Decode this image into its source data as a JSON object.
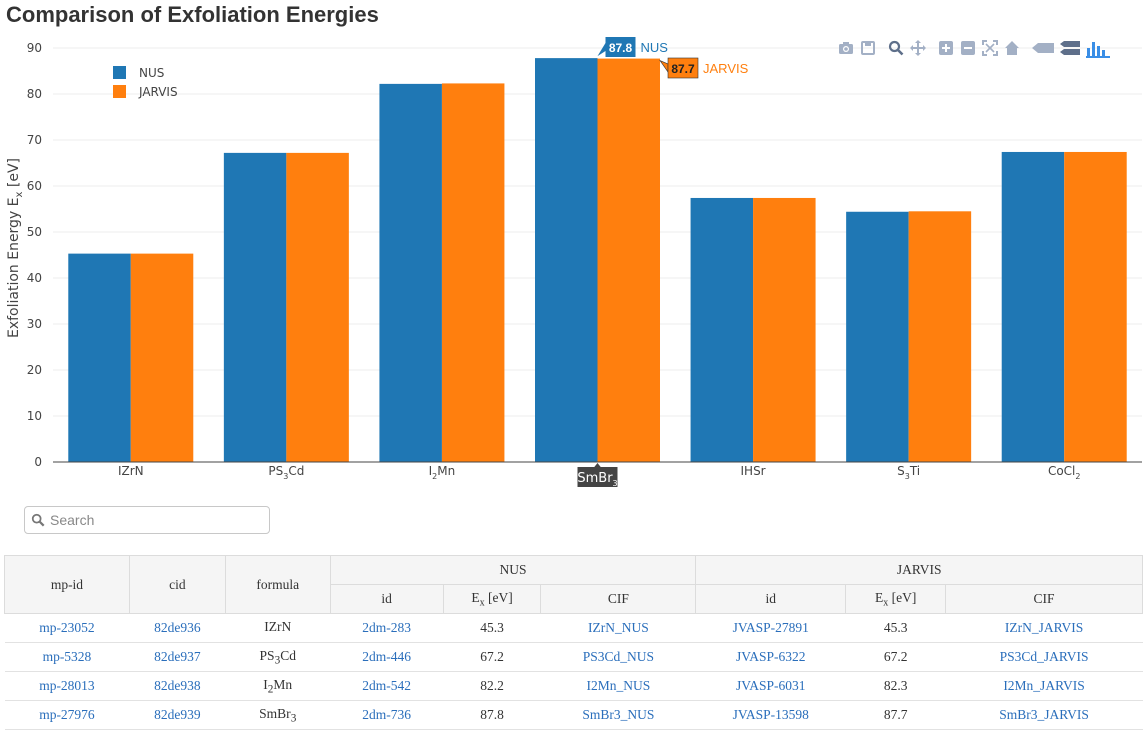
{
  "page": {
    "title": "Comparison of Exfoliation Energies"
  },
  "chart_data": {
    "type": "bar",
    "title": "Comparison of Exfoliation Energies",
    "ylabel_main": "Exfoliation Energy E",
    "ylabel_sub": "x",
    "ylabel_unit": " [eV]",
    "xlabel": "",
    "ylim": [
      0,
      90
    ],
    "yticks": [
      0,
      10,
      20,
      30,
      40,
      50,
      60,
      70,
      80,
      90
    ],
    "grid": true,
    "legend_position": "top-left",
    "categories": [
      {
        "base": "IZrN",
        "sub": "",
        "tail": ""
      },
      {
        "base": "PS",
        "sub": "3",
        "tail": "Cd"
      },
      {
        "base": "I",
        "sub": "2",
        "tail": "Mn"
      },
      {
        "base": "SmBr",
        "sub": "3",
        "tail": ""
      },
      {
        "base": "IHSr",
        "sub": "",
        "tail": ""
      },
      {
        "base": "S",
        "sub": "3",
        "tail": "Ti"
      },
      {
        "base": "CoCl",
        "sub": "2",
        "tail": ""
      }
    ],
    "series": [
      {
        "name": "NUS",
        "color": "#1f77b4",
        "values": [
          45.3,
          67.2,
          82.2,
          87.8,
          57.4,
          54.4,
          67.4
        ]
      },
      {
        "name": "JARVIS",
        "color": "#ff7f0e",
        "values": [
          45.3,
          67.2,
          82.3,
          87.7,
          57.4,
          54.5,
          67.4
        ]
      }
    ],
    "hover": {
      "category_index": 3,
      "category_label": "SmBr",
      "category_sub": "3",
      "labels": [
        {
          "value": "87.8",
          "name": "NUS"
        },
        {
          "value": "87.7",
          "name": "JARVIS"
        }
      ]
    }
  },
  "modebar": {
    "icons": [
      "camera-icon",
      "save-icon",
      "zoom-icon",
      "pan-icon",
      "zoom-in-icon",
      "zoom-out-icon",
      "autoscale-icon",
      "home-icon",
      "hover-closest-icon",
      "hover-compare-icon",
      "plotly-logo-icon"
    ]
  },
  "search": {
    "placeholder": "Search",
    "value": ""
  },
  "table": {
    "group_headers": {
      "nus": "NUS",
      "jarvis": "JARVIS"
    },
    "headers": {
      "mp_id": "mp-id",
      "cid": "cid",
      "formula": "formula",
      "nus_id": "id",
      "nus_ex": "E",
      "nus_cif": "CIF",
      "jarvis_id": "id",
      "jarvis_ex": "E",
      "jarvis_cif": "CIF",
      "ex_sub": "x",
      "ex_unit": " [eV]"
    },
    "rows": [
      {
        "mp_id": "mp-23052",
        "cid": "82de936",
        "f_base": "IZrN",
        "f_sub": "",
        "f_tail": "",
        "nus_id": "2dm-283",
        "nus_ex": "45.3",
        "nus_cif": "IZrN_NUS",
        "jarvis_id": "JVASP-27891",
        "jarvis_ex": "45.3",
        "jarvis_cif": "IZrN_JARVIS"
      },
      {
        "mp_id": "mp-5328",
        "cid": "82de937",
        "f_base": "PS",
        "f_sub": "3",
        "f_tail": "Cd",
        "nus_id": "2dm-446",
        "nus_ex": "67.2",
        "nus_cif": "PS3Cd_NUS",
        "jarvis_id": "JVASP-6322",
        "jarvis_ex": "67.2",
        "jarvis_cif": "PS3Cd_JARVIS"
      },
      {
        "mp_id": "mp-28013",
        "cid": "82de938",
        "f_base": "I",
        "f_sub": "2",
        "f_tail": "Mn",
        "nus_id": "2dm-542",
        "nus_ex": "82.2",
        "nus_cif": "I2Mn_NUS",
        "jarvis_id": "JVASP-6031",
        "jarvis_ex": "82.3",
        "jarvis_cif": "I2Mn_JARVIS"
      },
      {
        "mp_id": "mp-27976",
        "cid": "82de939",
        "f_base": "SmBr",
        "f_sub": "3",
        "f_tail": "",
        "nus_id": "2dm-736",
        "nus_ex": "87.8",
        "nus_cif": "SmBr3_NUS",
        "jarvis_id": "JVASP-13598",
        "jarvis_ex": "87.7",
        "jarvis_cif": "SmBr3_JARVIS"
      }
    ]
  }
}
